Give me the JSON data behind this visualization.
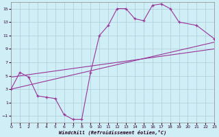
{
  "background_color": "#d0eef5",
  "grid_color": "#aaccd8",
  "line_color": "#993399",
  "xlabel": "Windchill (Refroidissement éolien,°C)",
  "xlim": [
    0,
    23
  ],
  "ylim": [
    -2,
    16
  ],
  "yticks": [
    -1,
    1,
    3,
    5,
    7,
    9,
    11,
    13,
    15
  ],
  "xticks": [
    0,
    1,
    2,
    3,
    4,
    5,
    6,
    7,
    8,
    9,
    10,
    11,
    12,
    13,
    14,
    15,
    16,
    17,
    18,
    19,
    20,
    21,
    22,
    23
  ],
  "main_line_x": [
    0,
    1,
    2,
    3,
    4,
    5,
    6,
    7,
    8,
    9,
    10,
    11,
    12,
    13,
    14,
    15,
    16,
    17,
    18,
    19,
    21,
    23
  ],
  "main_line_y": [
    3.0,
    5.5,
    4.8,
    2.0,
    1.8,
    1.6,
    -0.8,
    -1.5,
    -1.5,
    5.5,
    11.0,
    12.5,
    15.0,
    15.0,
    13.5,
    13.2,
    15.5,
    15.7,
    15.0,
    13.0,
    12.5,
    10.5
  ],
  "ref_line1": {
    "x": [
      0,
      23
    ],
    "y": [
      3.0,
      10.0
    ]
  },
  "ref_line2": {
    "x": [
      0,
      23
    ],
    "y": [
      4.8,
      9.0
    ]
  }
}
